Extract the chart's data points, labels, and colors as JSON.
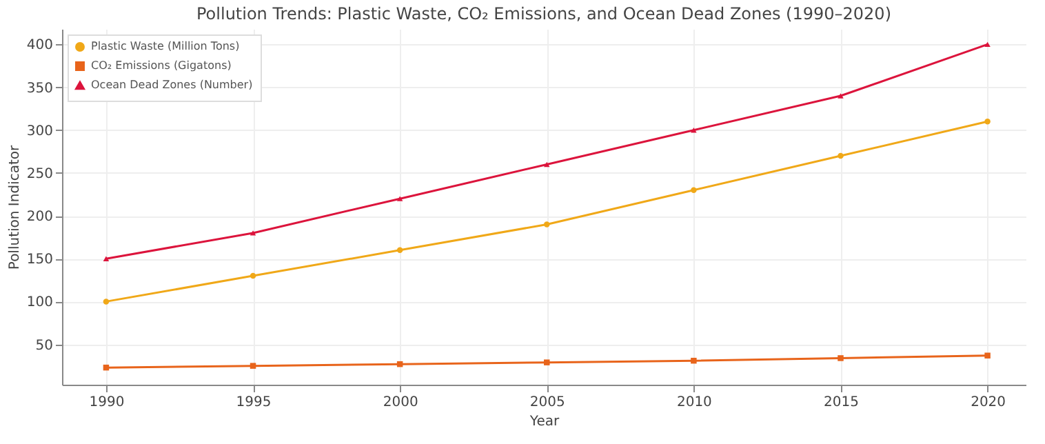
{
  "chart_data": {
    "type": "line",
    "title": "Pollution Trends: Plastic Waste, CO₂ Emissions, and Ocean Dead Zones (1990–2020)",
    "xlabel": "Year",
    "ylabel": "Pollution Indicator",
    "x": [
      1990,
      1995,
      2000,
      2005,
      2010,
      2015,
      2020
    ],
    "xlim": [
      1988.5,
      2021.3
    ],
    "xticks": [
      1990,
      1995,
      2000,
      2005,
      2010,
      2015,
      2020
    ],
    "ylim": [
      3,
      418
    ],
    "yticks": [
      50,
      100,
      150,
      200,
      250,
      300,
      350,
      400
    ],
    "grid": true,
    "legend": "top left",
    "line_style": "solid",
    "series": [
      {
        "name": "Plastic Waste (Million Tons)",
        "color": "#f0a818",
        "marker": "circle",
        "values": [
          100,
          130,
          160,
          190,
          230,
          270,
          310
        ]
      },
      {
        "name": "CO₂ Emissions (Gigatons)",
        "color": "#e8641b",
        "marker": "square",
        "values": [
          23,
          25,
          27,
          29,
          31,
          34,
          37
        ]
      },
      {
        "name": "Ocean Dead Zones (Number)",
        "color": "#dc143c",
        "marker": "triangle",
        "values": [
          150,
          180,
          220,
          260,
          300,
          340,
          400
        ]
      }
    ]
  }
}
